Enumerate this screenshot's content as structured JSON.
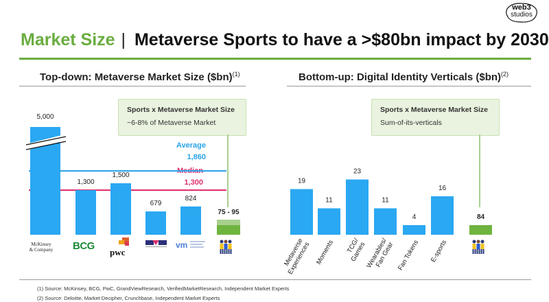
{
  "brand": {
    "line1": "web3",
    "line2": "studios"
  },
  "header": {
    "prefix": "Market Size",
    "separator": "|",
    "title": "Metaverse Sports to have a >$80bn impact by 2030"
  },
  "colors": {
    "accent_green": "#6aad40",
    "bar_blue": "#2aa8f2",
    "bar_green": "#6fb43f",
    "average_line": "#29a3e8",
    "median_line": "#e0306b"
  },
  "left": {
    "heading": "Top-down: Metaverse Market Size ($bn)",
    "note": "(1)",
    "callout": {
      "title": "Sports x Metaverse Market Size",
      "subtitle": "~6-8% of Metaverse Market"
    },
    "reference": {
      "average_label": "Average",
      "average_value": "1,860",
      "median_label": "Median",
      "median_value": "1,300"
    },
    "logos": [
      "McKinsey & Company",
      "BCG",
      "pwc",
      "GrandViewResearch",
      "VerifiedMarketResearch",
      "Sports fans"
    ]
  },
  "right": {
    "heading": "Bottom-up: Digital Identity Verticals ($bn)",
    "note": "(2)",
    "callout": {
      "title": "Sports x Metaverse Market Size",
      "subtitle": "Sum-of-its-verticals"
    }
  },
  "chart_data": [
    {
      "type": "bar",
      "title": "Top-down: Metaverse Market Size ($bn)",
      "categories": [
        "McKinsey & Company",
        "BCG",
        "PwC",
        "GrandViewResearch",
        "VerifiedMarketResearch",
        "Sports x Metaverse"
      ],
      "values": [
        5000,
        1300,
        1500,
        679,
        824,
        85
      ],
      "value_labels": [
        "5,000",
        "1,300",
        "1,500",
        "679",
        "824",
        "75 - 95"
      ],
      "range": {
        "category": "Sports x Metaverse",
        "low": 75,
        "high": 95
      },
      "reference_lines": [
        {
          "name": "Average",
          "value": 1860
        },
        {
          "name": "Median",
          "value": 1300
        }
      ],
      "axis_break": {
        "category": "McKinsey & Company",
        "broken": true
      },
      "xlabel": "",
      "ylabel": "",
      "grid": false
    },
    {
      "type": "bar",
      "title": "Bottom-up: Digital Identity Verticals ($bn)",
      "categories": [
        "Metaverse Experiences",
        "Moments",
        "TCG/ Games",
        "Wearables/ Fan Gear",
        "Fan Tokens",
        "E-sports",
        "Sports x Metaverse"
      ],
      "category_labels": [
        [
          "Metaverse",
          "Experiences"
        ],
        [
          "Moments"
        ],
        [
          "TCG/",
          "Games"
        ],
        [
          "Wearables/",
          "Fan Gear"
        ],
        [
          "Fan Tokens"
        ],
        [
          "E-sports"
        ],
        []
      ],
      "values": [
        19,
        11,
        23,
        11,
        4,
        16,
        84
      ],
      "value_labels": [
        "19",
        "11",
        "23",
        "11",
        "4",
        "16",
        "84"
      ],
      "xlabel": "",
      "ylabel": "",
      "grid": false
    }
  ],
  "footnotes": [
    "(1) Source: McKinsey, BCG, PwC, GrandViewResearch, VerifiedMarketResearch, Independent Market Experts",
    "(2) Source: Deloitte, Market Decipher, Crunchbase, Independent Market Experts"
  ]
}
